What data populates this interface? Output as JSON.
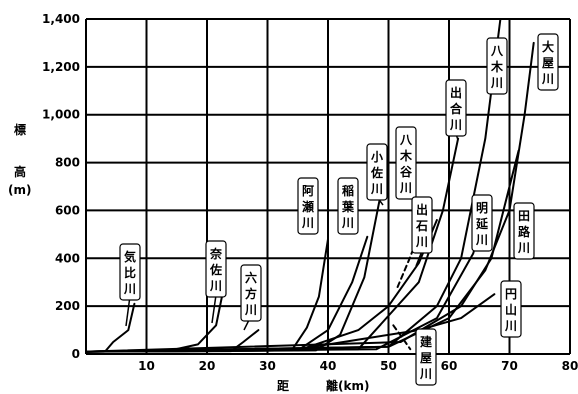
{
  "chart_data": {
    "type": "line",
    "title": "",
    "ylabel": {
      "line1": "標",
      "line2": "高",
      "line3": "(m)"
    },
    "xlabel": {
      "left": "距",
      "right": "離(km)"
    },
    "xlim": [
      0,
      80
    ],
    "ylim": [
      0,
      1400
    ],
    "xticks": [
      10,
      20,
      30,
      40,
      50,
      60,
      70,
      80
    ],
    "yticks": [
      0,
      200,
      400,
      600,
      800,
      1000,
      1200,
      1400
    ],
    "ytick_labels": [
      "0",
      "200",
      "400",
      "600",
      "800",
      "1,000",
      "1,200",
      "1,400"
    ],
    "grid": true,
    "series": [
      {
        "name": "気比川",
        "dashed": false,
        "x": [
          0,
          3.2,
          4.5,
          7.0,
          8.0
        ],
        "y": [
          10,
          12,
          50,
          100,
          210
        ]
      },
      {
        "name": "奈佐川",
        "dashed": false,
        "x": [
          0,
          14,
          18.5,
          21.5,
          22.8
        ],
        "y": [
          10,
          15,
          40,
          120,
          280
        ]
      },
      {
        "name": "六方川",
        "dashed": false,
        "x": [
          0,
          24,
          26,
          28.5
        ],
        "y": [
          10,
          12,
          50,
          100
        ]
      },
      {
        "name": "阿瀬川",
        "dashed": false,
        "x": [
          0,
          34,
          36.5,
          38.5,
          40.0
        ],
        "y": [
          10,
          15,
          110,
          240,
          480
        ]
      },
      {
        "name": "稲葉川",
        "dashed": false,
        "x": [
          0,
          35,
          40,
          44,
          46.5
        ],
        "y": [
          10,
          15,
          100,
          300,
          490
        ]
      },
      {
        "name": "小佐川",
        "dashed": false,
        "x": [
          0,
          38,
          42,
          46,
          48.5
        ],
        "y": [
          10,
          15,
          80,
          320,
          640
        ]
      },
      {
        "name": "八木谷川",
        "dashed": true,
        "x": [
          51.5,
          53.5,
          55,
          56
        ],
        "y": [
          280,
          400,
          500,
          640
        ]
      },
      {
        "name": "出石川",
        "dashed": false,
        "x": [
          0,
          35,
          45,
          50,
          55,
          58
        ],
        "y": [
          10,
          15,
          100,
          200,
          380,
          560
        ]
      },
      {
        "name": "出合川",
        "dashed": false,
        "x": [
          0,
          45,
          55,
          59,
          61.5
        ],
        "y": [
          10,
          20,
          300,
          600,
          900
        ]
      },
      {
        "name": "八木川",
        "dashed": false,
        "x": [
          0,
          50,
          58,
          62,
          66,
          68.5
        ],
        "y": [
          10,
          30,
          200,
          400,
          900,
          1400
        ]
      },
      {
        "name": "明延川",
        "dashed": false,
        "x": [
          0,
          48,
          58,
          64,
          66.5
        ],
        "y": [
          10,
          20,
          150,
          420,
          640
        ]
      },
      {
        "name": "大屋川",
        "dashed": false,
        "x": [
          0,
          50,
          60,
          66,
          70,
          72.5,
          74
        ],
        "y": [
          10,
          30,
          150,
          350,
          600,
          1000,
          1300
        ]
      },
      {
        "name": "田路川",
        "dashed": false,
        "x": [
          0,
          52,
          62,
          67,
          70,
          71.5
        ],
        "y": [
          10,
          50,
          200,
          400,
          700,
          850
        ]
      },
      {
        "name": "円山川",
        "dashed": false,
        "x": [
          0,
          20,
          35,
          45,
          55,
          62,
          67.5
        ],
        "y": [
          10,
          12,
          20,
          60,
          100,
          150,
          250
        ]
      },
      {
        "name": "建屋川",
        "dashed": true,
        "x": [
          50.8,
          52.5,
          53.6
        ],
        "y": [
          120,
          60,
          20
        ]
      }
    ],
    "annotations": [
      {
        "text": "気比川",
        "series": "気比川"
      },
      {
        "text": "奈佐川",
        "series": "奈佐川"
      },
      {
        "text": "六方川",
        "series": "六方川"
      },
      {
        "text": "阿瀬川",
        "series": "阿瀬川"
      },
      {
        "text": "稲葉川",
        "series": "稲葉川"
      },
      {
        "text": "小佐川",
        "series": "小佐川"
      },
      {
        "text": "八木谷川",
        "series": "八木谷川"
      },
      {
        "text": "出石川",
        "series": "出石川"
      },
      {
        "text": "出合川",
        "series": "出合川"
      },
      {
        "text": "八木川",
        "series": "八木川"
      },
      {
        "text": "明延川",
        "series": "明延川"
      },
      {
        "text": "大屋川",
        "series": "大屋川"
      },
      {
        "text": "田路川",
        "series": "田路川"
      },
      {
        "text": "円山川",
        "series": "円山川"
      },
      {
        "text": "建屋川",
        "series": "建屋川"
      }
    ]
  }
}
